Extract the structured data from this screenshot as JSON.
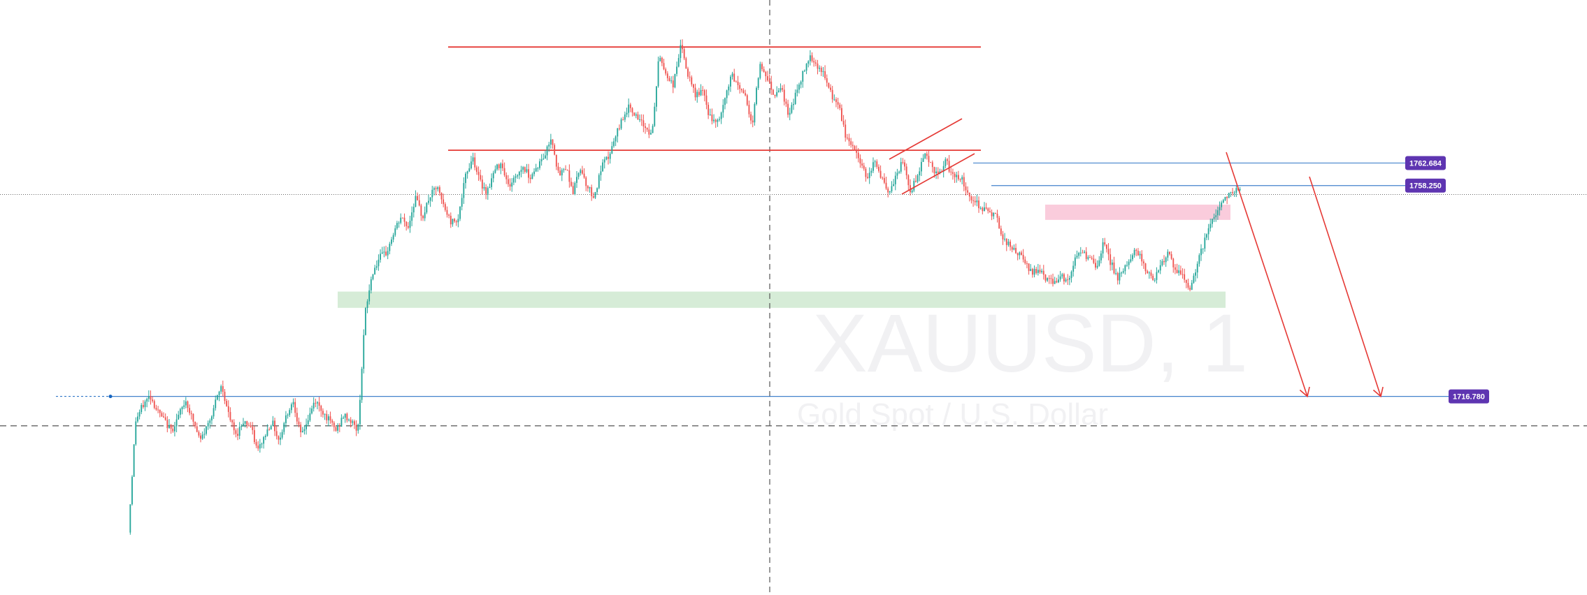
{
  "chart_data": {
    "type": "candlestick",
    "watermark": {
      "symbol": "XAUUSD, 1",
      "description": "Gold Spot / U.S. Dollar"
    },
    "ylim": [
      1678,
      1792
    ],
    "colors": {
      "up": "#26a69a",
      "down": "#ef5350",
      "resistance": "#e53935",
      "hline": "#1565c0",
      "tag": "#5e35b1",
      "supply_zone": "#f8bbd0",
      "demand_zone": "#c8e6c9",
      "crosshair": "#555555"
    },
    "price_levels": [
      {
        "label": "1762.684",
        "value": 1762.684
      },
      {
        "label": "1758.250",
        "value": 1758.25
      },
      {
        "label": "1716.780",
        "value": 1716.78
      }
    ],
    "resistance_levels": [
      1785.5,
      1765.2
    ],
    "zones": [
      {
        "kind": "demand",
        "low": 1734.2,
        "high": 1737.4
      },
      {
        "kind": "supply",
        "low": 1751.5,
        "high": 1754.5
      }
    ],
    "crosshair_price": 1756.5,
    "dashed_level": 1711.0,
    "price_path": [
      1690,
      1712,
      1715,
      1717,
      1714,
      1712,
      1710,
      1713,
      1716,
      1712,
      1708,
      1711,
      1715,
      1719,
      1713,
      1709,
      1712,
      1711,
      1706,
      1709,
      1712,
      1708,
      1713,
      1716,
      1709,
      1712,
      1716,
      1714,
      1712,
      1710,
      1713,
      1712,
      1710,
      1733,
      1741,
      1744,
      1745,
      1749,
      1752,
      1750,
      1756,
      1752,
      1756,
      1758,
      1754,
      1751,
      1752,
      1760,
      1764,
      1759,
      1757,
      1761,
      1763,
      1758,
      1760,
      1762,
      1760,
      1762,
      1764,
      1768,
      1760,
      1762,
      1757,
      1762,
      1758,
      1756,
      1762,
      1764,
      1768,
      1772,
      1774,
      1771,
      1770,
      1768,
      1784,
      1780,
      1778,
      1786,
      1780,
      1776,
      1777,
      1772,
      1770,
      1774,
      1780,
      1778,
      1776,
      1770,
      1782,
      1780,
      1776,
      1778,
      1772,
      1776,
      1780,
      1784,
      1782,
      1780,
      1776,
      1774,
      1768,
      1766,
      1763,
      1760,
      1763,
      1760,
      1756,
      1760,
      1763,
      1757,
      1760,
      1765,
      1762,
      1760,
      1763,
      1760,
      1760,
      1757,
      1755,
      1754,
      1753,
      1752,
      1748,
      1746,
      1745,
      1743,
      1741,
      1742,
      1740,
      1739,
      1741,
      1739,
      1744,
      1745,
      1744,
      1742,
      1747,
      1743,
      1740,
      1742,
      1745,
      1745,
      1741,
      1740,
      1743,
      1745,
      1741,
      1741,
      1737,
      1743,
      1747,
      1751,
      1754,
      1756,
      1757,
      1758
    ],
    "x_labels": []
  }
}
